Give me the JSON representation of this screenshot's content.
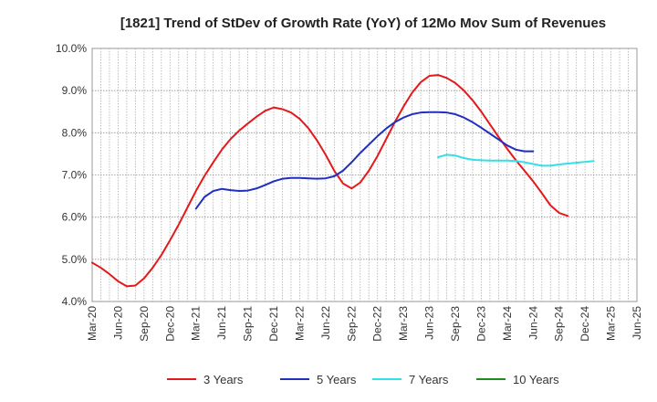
{
  "chart_data": {
    "type": "line",
    "title": "[1821]  Trend of StDev of Growth Rate (YoY) of 12Mo Mov Sum of Revenues",
    "xlabel": "",
    "ylabel": "",
    "ylim": [
      4.0,
      10.0
    ],
    "y_ticks": [
      "4.0%",
      "5.0%",
      "6.0%",
      "7.0%",
      "8.0%",
      "9.0%",
      "10.0%"
    ],
    "y_tick_values": [
      4.0,
      5.0,
      6.0,
      7.0,
      8.0,
      9.0,
      10.0
    ],
    "grid": true,
    "legend_position": "bottom",
    "x_categories": [
      "Mar-20",
      "Jun-20",
      "Sep-20",
      "Dec-20",
      "Mar-21",
      "Jun-21",
      "Sep-21",
      "Dec-21",
      "Mar-22",
      "Jun-22",
      "Sep-22",
      "Dec-22",
      "Mar-23",
      "Jun-23",
      "Sep-23",
      "Dec-23",
      "Mar-24",
      "Jun-24",
      "Sep-24",
      "Dec-24",
      "Mar-25",
      "Jun-25"
    ],
    "series": [
      {
        "name": "3 Years",
        "color": "#e31a1c",
        "start_index": 0,
        "values": [
          4.92,
          4.8,
          4.65,
          4.48,
          4.36,
          4.38,
          4.55,
          4.8,
          5.1,
          5.45,
          5.82,
          6.22,
          6.62,
          6.98,
          7.3,
          7.6,
          7.85,
          8.05,
          8.22,
          8.38,
          8.52,
          8.6,
          8.56,
          8.48,
          8.33,
          8.11,
          7.82,
          7.48,
          7.1,
          6.8,
          6.68,
          6.82,
          7.1,
          7.45,
          7.85,
          8.25,
          8.62,
          8.95,
          9.2,
          9.35,
          9.37,
          9.3,
          9.18,
          9.0,
          8.77,
          8.5,
          8.2,
          7.9,
          7.62,
          7.35,
          7.1,
          6.85,
          6.57,
          6.28,
          6.1,
          6.03
        ]
      },
      {
        "name": "5 Years",
        "color": "#1f2fbf",
        "start_index": 12,
        "values": [
          6.2,
          6.48,
          6.62,
          6.67,
          6.64,
          6.62,
          6.63,
          6.68,
          6.76,
          6.85,
          6.91,
          6.93,
          6.93,
          6.92,
          6.91,
          6.92,
          6.97,
          7.1,
          7.3,
          7.52,
          7.72,
          7.92,
          8.1,
          8.25,
          8.36,
          8.44,
          8.48,
          8.49,
          8.49,
          8.48,
          8.44,
          8.36,
          8.25,
          8.12,
          7.98,
          7.84,
          7.7,
          7.6,
          7.56,
          7.56
        ]
      },
      {
        "name": "7 Years",
        "color": "#33e0e6",
        "start_index": 40,
        "values": [
          7.42,
          7.48,
          7.46,
          7.4,
          7.36,
          7.35,
          7.34,
          7.34,
          7.34,
          7.33,
          7.3,
          7.26,
          7.22,
          7.22,
          7.25,
          7.27,
          7.29,
          7.31,
          7.33
        ]
      },
      {
        "name": "10 Years",
        "color": "#1e8c1e",
        "start_index": 0,
        "values": []
      }
    ]
  }
}
